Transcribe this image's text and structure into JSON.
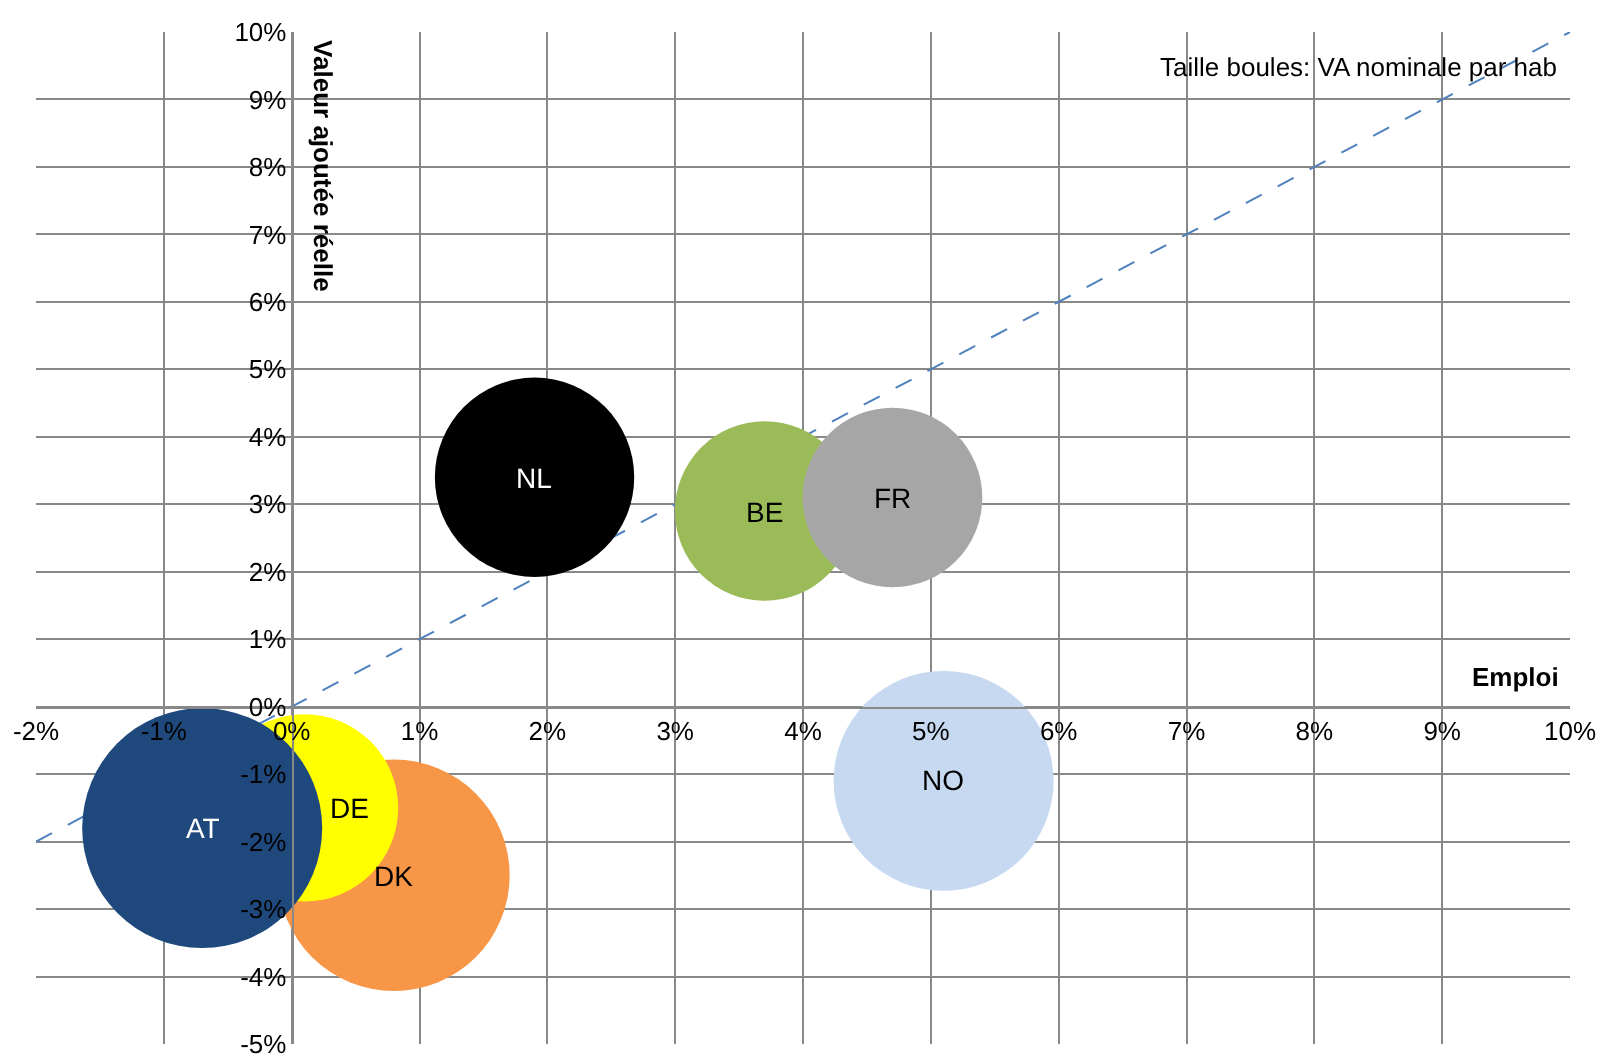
{
  "chart_data": {
    "type": "bubble",
    "xlabel": "Emploi",
    "ylabel": "Valeur ajoutée réelle",
    "annotations": [
      "Taille boules: VA nominale par hab"
    ],
    "xlim": [
      -2,
      10
    ],
    "ylim": [
      -5,
      10
    ],
    "xticks": [
      {
        "value": -2,
        "label": "-2%"
      },
      {
        "value": -1,
        "label": "-1%"
      },
      {
        "value": 0,
        "label": "0%"
      },
      {
        "value": 1,
        "label": "1%"
      },
      {
        "value": 2,
        "label": "2%"
      },
      {
        "value": 3,
        "label": "3%"
      },
      {
        "value": 4,
        "label": "4%"
      },
      {
        "value": 5,
        "label": "5%"
      },
      {
        "value": 6,
        "label": "6%"
      },
      {
        "value": 7,
        "label": "7%"
      },
      {
        "value": 8,
        "label": "8%"
      },
      {
        "value": 9,
        "label": "9%"
      },
      {
        "value": 10,
        "label": "10%"
      }
    ],
    "yticks": [
      {
        "value": -5,
        "label": "-5%"
      },
      {
        "value": -4,
        "label": "-4%"
      },
      {
        "value": -3,
        "label": "-3%"
      },
      {
        "value": -2,
        "label": "-2%"
      },
      {
        "value": -1,
        "label": "-1%"
      },
      {
        "value": 0,
        "label": "0%"
      },
      {
        "value": 1,
        "label": "1%"
      },
      {
        "value": 2,
        "label": "2%"
      },
      {
        "value": 3,
        "label": "3%"
      },
      {
        "value": 4,
        "label": "4%"
      },
      {
        "value": 5,
        "label": "5%"
      },
      {
        "value": 6,
        "label": "6%"
      },
      {
        "value": 7,
        "label": "7%"
      },
      {
        "value": 8,
        "label": "8%"
      },
      {
        "value": 9,
        "label": "9%"
      },
      {
        "value": 10,
        "label": "10%"
      }
    ],
    "grid": true,
    "legend": false,
    "series": [
      {
        "type": "line",
        "line_style": "dashed",
        "color": "#4f81bd",
        "x": [
          -2,
          10
        ],
        "values": [
          -2,
          10
        ]
      },
      {
        "name": "NL",
        "color": "#000000",
        "x": [
          1.9
        ],
        "values": [
          3.4
        ],
        "sizes": [
          0.69
        ]
      },
      {
        "name": "BE",
        "color": "#9bbb59",
        "x": [
          3.7
        ],
        "values": [
          2.9
        ],
        "sizes": [
          0.56
        ]
      },
      {
        "name": "FR",
        "color": "#a6a6a6",
        "x": [
          4.7
        ],
        "values": [
          3.1
        ],
        "sizes": [
          0.56
        ]
      },
      {
        "name": "NO",
        "color": "#c6d9f1",
        "x": [
          5.1
        ],
        "values": [
          -1.1
        ],
        "sizes": [
          0.84
        ]
      },
      {
        "name": "DK",
        "color": "#f79646",
        "x": [
          0.8
        ],
        "values": [
          -2.5
        ],
        "sizes": [
          0.93
        ]
      },
      {
        "name": "DE",
        "color": "#ffff00",
        "x": [
          0.1
        ],
        "values": [
          -1.5
        ],
        "sizes": [
          0.61
        ]
      },
      {
        "name": "AT",
        "color": "#1f497d",
        "x": [
          -0.7
        ],
        "values": [
          -1.8
        ],
        "sizes": [
          1
        ]
      }
    ]
  }
}
